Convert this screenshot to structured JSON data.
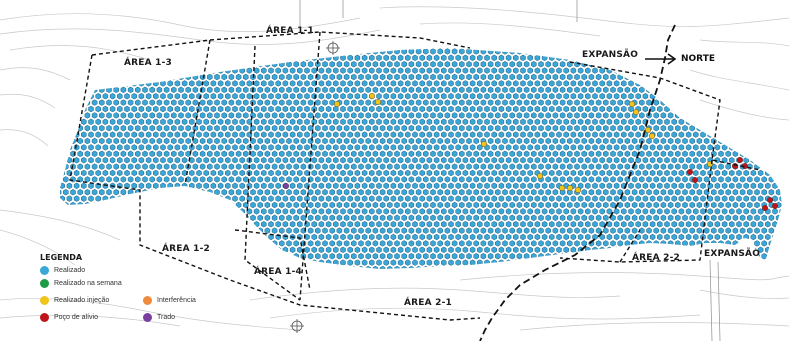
{
  "areas": {
    "area_1_1": "ÁREA 1-1",
    "area_1_3": "ÁREA 1-3",
    "area_1_2": "ÁREA 1-2",
    "area_1_4": "ÁREA 1-4",
    "area_2_1": "ÁREA 2-1",
    "area_2_2": "ÁREA 2-2",
    "expansao_top": "EXPANSÃO",
    "expansao_right": "EXPANSÃO"
  },
  "north_label": "NORTE",
  "legend": {
    "title": "LEGENDA",
    "items": [
      {
        "label": "Realizado",
        "color": "#3aa7d8"
      },
      {
        "label": "Realizado na semana",
        "color": "#1e9b47"
      },
      {
        "label": "Realizado injeção",
        "color": "#f0c419"
      },
      {
        "label": "Interferência",
        "color": "#f08a3c"
      },
      {
        "label": "Poço de alívio",
        "color": "#c0141b"
      },
      {
        "label": "Trado",
        "color": "#7a3fa0"
      }
    ]
  },
  "colors": {
    "pile_fill": "#3aa7d8",
    "pile_stroke": "#1b5f82",
    "injection": "#f0c419",
    "relief_well": "#c0141b",
    "trado": "#7a3fa0",
    "contour": "#c9c9c9",
    "boundary": "#111111"
  }
}
